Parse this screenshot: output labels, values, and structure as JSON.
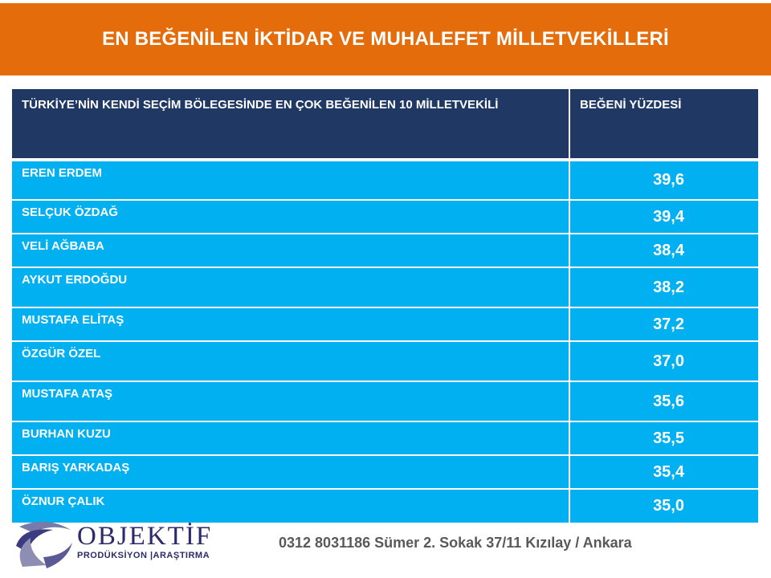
{
  "title": "EN BEĞENİLEN İKTİDAR VE MUHALEFET MİLLETVEKİLLERİ",
  "table": {
    "headers": [
      "TÜRKİYE’NİN KENDİ SEÇİM BÖLEGESİNDE EN ÇOK BEĞENİLEN 10 MİLLETVEKİLİ",
      "BEĞENİ YÜZDESİ"
    ],
    "rows": [
      {
        "name": "EREN ERDEM",
        "value": "39,6"
      },
      {
        "name": "SELÇUK ÖZDAĞ",
        "value": "39,4"
      },
      {
        "name": "VELİ AĞBABA",
        "value": "38,4"
      },
      {
        "name": "AYKUT ERDOĞDU",
        "value": "38,2"
      },
      {
        "name": "MUSTAFA ELİTAŞ",
        "value": "37,2"
      },
      {
        "name": "ÖZGÜR ÖZEL",
        "value": "37,0"
      },
      {
        "name": "MUSTAFA ATAŞ",
        "value": "35,6"
      },
      {
        "name": "BURHAN KUZU",
        "value": "35,5"
      },
      {
        "name": "BARIŞ YARKADAŞ",
        "value": "35,4"
      },
      {
        "name": "ÖZNUR ÇALIK",
        "value": "35,0"
      }
    ]
  },
  "footer": {
    "logo_brand": "OBJEKTİF",
    "logo_sub": "PRODÜKSİYON |ARAŞTIRMA",
    "contact": "0312 8031186 Sümer 2. Sokak 37/11 Kızılay / Ankara"
  },
  "colors": {
    "title_bar": "#e46c0a",
    "header_bg": "#1f3864",
    "row_bg": "#00b0f0"
  }
}
